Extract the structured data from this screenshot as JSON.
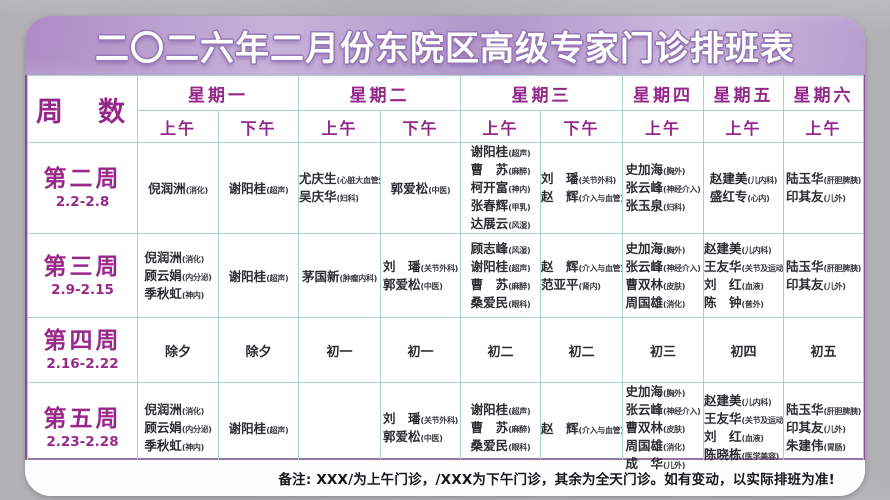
{
  "page": {
    "title": "二〇二六年二月份东院区高级专家门诊排班表"
  },
  "table": {
    "week_header": "周　数",
    "days": [
      "星期一",
      "星期二",
      "星期三",
      "星期四",
      "星期五",
      "星期六"
    ],
    "sessions": [
      "上午",
      "下午",
      "上午",
      "下午",
      "上午",
      "下午",
      "上午",
      "上午",
      "上午"
    ],
    "rows": [
      {
        "week": "第二周",
        "dates": "2.2-2.8",
        "cells": [
          {
            "doctors": [
              {
                "name": "倪润洲",
                "dept": "消化"
              }
            ]
          },
          {
            "doctors": [
              {
                "name": "谢阳桂",
                "dept": "超声"
              }
            ]
          },
          {
            "doctors": [
              {
                "name": "尤庆生",
                "dept": "心脏大血管外科"
              },
              {
                "name": "吴庆华",
                "dept": "妇科"
              }
            ]
          },
          {
            "doctors": [
              {
                "name": "郭爱松",
                "dept": "中医"
              }
            ]
          },
          {
            "doctors": [
              {
                "name": "谢阳桂",
                "dept": "超声"
              },
              {
                "name": "曹　苏",
                "dept": "麻醉"
              },
              {
                "name": "柯开富",
                "dept": "神内"
              },
              {
                "name": "张春辉",
                "dept": "甲乳"
              },
              {
                "name": "达展云",
                "dept": "风湿"
              }
            ]
          },
          {
            "doctors": [
              {
                "name": "刘　璠",
                "dept": "关节外科"
              },
              {
                "name": "赵　辉",
                "dept": "介入与血管"
              }
            ]
          },
          {
            "doctors": [
              {
                "name": "史加海",
                "dept": "胸外"
              },
              {
                "name": "张云峰",
                "dept": "神经介入"
              },
              {
                "name": "张玉泉",
                "dept": "妇科"
              }
            ]
          },
          {
            "doctors": [
              {
                "name": "赵建美",
                "dept": "儿内科"
              },
              {
                "name": "盛红专",
                "dept": "心内"
              }
            ]
          },
          {
            "doctors": [
              {
                "name": "陆玉华",
                "dept": "肝胆脾胰"
              },
              {
                "name": "印其友",
                "dept": "儿外"
              }
            ]
          }
        ]
      },
      {
        "week": "第三周",
        "dates": "2.9-2.15",
        "cells": [
          {
            "doctors": [
              {
                "name": "倪润洲",
                "dept": "消化"
              },
              {
                "name": "顾云娟",
                "dept": "内分泌"
              },
              {
                "name": "季秋虹",
                "dept": "神内"
              }
            ]
          },
          {
            "doctors": [
              {
                "name": "谢阳桂",
                "dept": "超声"
              }
            ]
          },
          {
            "doctors": [
              {
                "name": "茅国新",
                "dept": "肿瘤内科"
              }
            ]
          },
          {
            "doctors": [
              {
                "name": "刘　璠",
                "dept": "关节外科"
              },
              {
                "name": "郭爱松",
                "dept": "中医"
              }
            ]
          },
          {
            "doctors": [
              {
                "name": "顾志峰",
                "dept": "风湿"
              },
              {
                "name": "谢阳桂",
                "dept": "超声"
              },
              {
                "name": "曹　苏",
                "dept": "麻醉"
              },
              {
                "name": "桑爱民",
                "dept": "眼科"
              }
            ]
          },
          {
            "doctors": [
              {
                "name": "赵　辉",
                "dept": "介入与血管"
              },
              {
                "name": "范亚平",
                "dept": "肾内"
              }
            ]
          },
          {
            "doctors": [
              {
                "name": "史加海",
                "dept": "胸外"
              },
              {
                "name": "张云峰",
                "dept": "神经介入"
              },
              {
                "name": "曹双林",
                "dept": "皮肤"
              },
              {
                "name": "周国雄",
                "dept": "消化"
              }
            ]
          },
          {
            "doctors": [
              {
                "name": "赵建美",
                "dept": "儿内科"
              },
              {
                "name": "王友华",
                "dept": "关节及运动医学"
              },
              {
                "name": "刘　红",
                "dept": "血液"
              },
              {
                "name": "陈　钟",
                "dept": "普外"
              }
            ]
          },
          {
            "doctors": [
              {
                "name": "陆玉华",
                "dept": "肝胆脾胰"
              },
              {
                "name": "印其友",
                "dept": "儿外"
              }
            ]
          }
        ]
      },
      {
        "week": "第四周",
        "dates": "2.16-2.22",
        "cells": [
          {
            "holiday": "除夕"
          },
          {
            "holiday": "除夕"
          },
          {
            "holiday": "初一"
          },
          {
            "holiday": "初一"
          },
          {
            "holiday": "初二"
          },
          {
            "holiday": "初二"
          },
          {
            "holiday": "初三"
          },
          {
            "holiday": "初四"
          },
          {
            "holiday": "初五"
          }
        ]
      },
      {
        "week": "第五周",
        "dates": "2.23-2.28",
        "cells": [
          {
            "doctors": [
              {
                "name": "倪润洲",
                "dept": "消化"
              },
              {
                "name": "顾云娟",
                "dept": "内分泌"
              },
              {
                "name": "季秋虹",
                "dept": "神内"
              }
            ]
          },
          {
            "doctors": [
              {
                "name": "谢阳桂",
                "dept": "超声"
              }
            ]
          },
          {
            "doctors": []
          },
          {
            "doctors": [
              {
                "name": "刘　璠",
                "dept": "关节外科"
              },
              {
                "name": "郭爱松",
                "dept": "中医"
              }
            ]
          },
          {
            "doctors": [
              {
                "name": "谢阳桂",
                "dept": "超声"
              },
              {
                "name": "曹　苏",
                "dept": "麻醉"
              },
              {
                "name": "桑爱民",
                "dept": "眼科"
              }
            ]
          },
          {
            "doctors": [
              {
                "name": "赵　辉",
                "dept": "介入与血管"
              }
            ]
          },
          {
            "doctors": [
              {
                "name": "史加海",
                "dept": "胸外"
              },
              {
                "name": "张云峰",
                "dept": "神经介入"
              },
              {
                "name": "曹双林",
                "dept": "皮肤"
              },
              {
                "name": "周国雄",
                "dept": "消化"
              },
              {
                "name": "成　华",
                "dept": "儿外"
              }
            ]
          },
          {
            "doctors": [
              {
                "name": "赵建美",
                "dept": "儿内科"
              },
              {
                "name": "王友华",
                "dept": "关节及运动医学"
              },
              {
                "name": "刘　红",
                "dept": "血液"
              },
              {
                "name": "陈晓栋",
                "dept": "医学美容"
              }
            ]
          },
          {
            "doctors": [
              {
                "name": "陆玉华",
                "dept": "肝胆脾胰"
              },
              {
                "name": "印其友",
                "dept": "儿外"
              },
              {
                "name": "朱建伟",
                "dept": "胃肠"
              }
            ]
          }
        ]
      }
    ]
  },
  "footer": {
    "note": "备注: XXX/为上午门诊，/XXX为下午门诊，其余为全天门诊。如有变动，以实际排班为准!"
  },
  "colors": {
    "accent_magenta": "#93278a",
    "banner_purple": "#b99fd0",
    "grid_teal": "#a6d4cd",
    "outer_border_purple": "#8a4f9b",
    "background_gray": "#b2b1b4"
  }
}
